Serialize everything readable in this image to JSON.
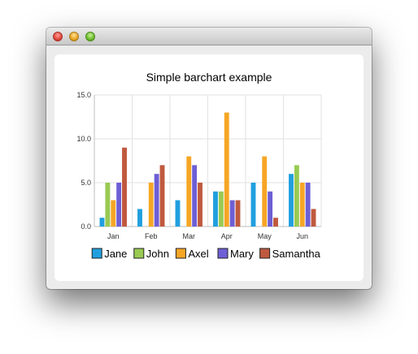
{
  "window": {
    "controls": [
      "close-button",
      "minimize-button",
      "maximize-button"
    ]
  },
  "chart_data": {
    "type": "bar",
    "title": "Simple barchart example",
    "categories": [
      "Jan",
      "Feb",
      "Mar",
      "Apr",
      "May",
      "Jun"
    ],
    "ylim": [
      0,
      15
    ],
    "yticks": [
      "0.0",
      "5.0",
      "10.0",
      "15.0"
    ],
    "ytick_values": [
      0,
      5,
      10,
      15
    ],
    "grid": true,
    "legend_position": "bottom",
    "series": [
      {
        "name": "Jane",
        "color": "#209fdf",
        "values": [
          1,
          2,
          3,
          4,
          5,
          6
        ]
      },
      {
        "name": "John",
        "color": "#99ca53",
        "values": [
          5,
          0,
          0,
          4,
          0,
          7
        ]
      },
      {
        "name": "Axel",
        "color": "#f6a625",
        "values": [
          3,
          5,
          8,
          13,
          8,
          5
        ]
      },
      {
        "name": "Mary",
        "color": "#6d5fd5",
        "values": [
          5,
          6,
          7,
          3,
          4,
          5
        ]
      },
      {
        "name": "Samantha",
        "color": "#bf593e",
        "values": [
          9,
          7,
          5,
          3,
          1,
          2
        ]
      }
    ]
  }
}
